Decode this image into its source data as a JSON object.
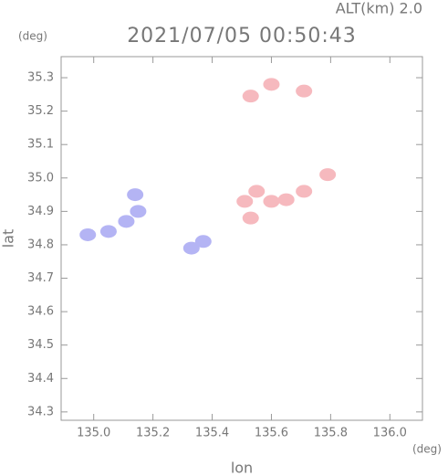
{
  "chart_data": {
    "type": "scatter",
    "title": "2021/07/05 00:50:43",
    "subtitle": "ALT(km) 2.0",
    "x_label": "lon",
    "y_label": "lat",
    "x_unit": "(deg)",
    "y_unit": "(deg)",
    "xlim": [
      134.89,
      136.11
    ],
    "ylim": [
      34.275,
      35.363
    ],
    "xticks": [
      {
        "value": 135,
        "label": "135.0"
      },
      135.2,
      135.4,
      135.6,
      135.8,
      {
        "value": 136,
        "label": "136.0"
      }
    ],
    "yticks": [
      34.3,
      34.4,
      34.5,
      34.6,
      34.7,
      34.8,
      34.9,
      {
        "value": 35,
        "label": "35.0"
      },
      35.1,
      35.2,
      35.3
    ],
    "series": [
      {
        "color": "#b4b4f4",
        "x": [
          134.98,
          135.05,
          135.11,
          135.15,
          135.14,
          135.33,
          135.37
        ],
        "values": [
          34.83,
          34.84,
          34.87,
          34.9,
          34.95,
          34.79,
          34.81
        ]
      },
      {
        "color": "#f6b9be",
        "x": [
          135.51,
          135.55,
          135.6,
          135.65,
          135.71,
          135.79,
          135.53,
          135.71,
          135.6,
          135.53
        ],
        "values": [
          34.93,
          34.96,
          34.93,
          34.935,
          34.96,
          35.01,
          34.88,
          35.26,
          35.28,
          35.245
        ]
      }
    ]
  }
}
